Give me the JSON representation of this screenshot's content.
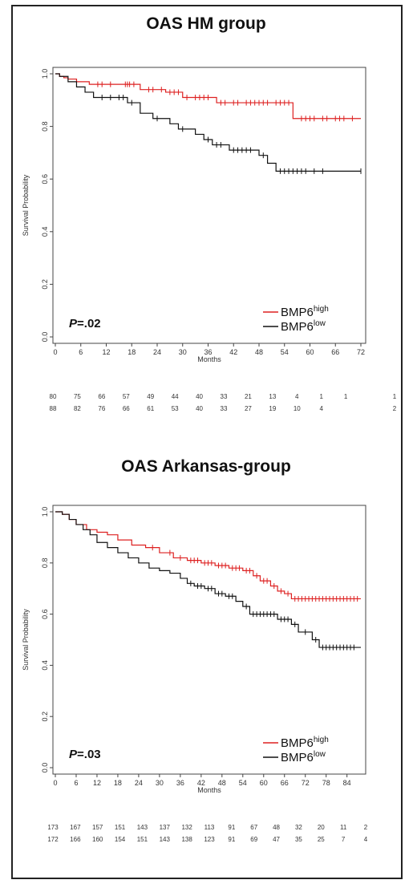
{
  "panels": [
    {
      "title": "OAS  HM group",
      "p_prefix": "P",
      "p_value": "=.02",
      "legend": [
        {
          "base": "BMP6",
          "sup": "high",
          "color": "#dd2020"
        },
        {
          "base": "BMP6",
          "sup": "low",
          "color": "#111111"
        }
      ],
      "xlabel": "Months",
      "ylabel": "Survival Probability",
      "risk_table": [
        [
          "80",
          "75",
          "66",
          "57",
          "49",
          "44",
          "40",
          "33",
          "21",
          "13",
          "4",
          "1",
          "1",
          "",
          "1"
        ],
        [
          "88",
          "82",
          "76",
          "66",
          "61",
          "53",
          "40",
          "33",
          "27",
          "19",
          "10",
          "4",
          "",
          "",
          "2"
        ]
      ]
    },
    {
      "title": "OAS Arkansas-group",
      "p_prefix": "P",
      "p_value": "=.03",
      "legend": [
        {
          "base": "BMP6",
          "sup": "high",
          "color": "#dd2020"
        },
        {
          "base": "BMP6",
          "sup": "low",
          "color": "#111111"
        }
      ],
      "xlabel": "Months",
      "ylabel": "Survival Probability",
      "risk_table": [
        [
          "173",
          "167",
          "157",
          "151",
          "143",
          "137",
          "132",
          "113",
          "91",
          "67",
          "48",
          "32",
          "20",
          "11",
          "2"
        ],
        [
          "172",
          "166",
          "160",
          "154",
          "151",
          "143",
          "138",
          "123",
          "91",
          "69",
          "47",
          "35",
          "25",
          "7",
          "4"
        ]
      ]
    }
  ],
  "chart_data": [
    {
      "type": "line",
      "step": true,
      "title": "OAS  HM group",
      "xlabel": "Months",
      "ylabel": "Survival Probability",
      "xlim": [
        0,
        72
      ],
      "ylim": [
        0,
        1
      ],
      "xticks": [
        0,
        6,
        12,
        18,
        24,
        30,
        36,
        42,
        48,
        54,
        60,
        66,
        72
      ],
      "yticks": [
        0.0,
        0.2,
        0.4,
        0.6,
        0.8,
        1.0
      ],
      "legend_position": "bottom-right",
      "series": [
        {
          "name": "BMP6high",
          "color": "#dd2020",
          "x": [
            0,
            1,
            2,
            3,
            5,
            8,
            16,
            20,
            26,
            30,
            38,
            56,
            72
          ],
          "y": [
            1.0,
            0.99,
            0.985,
            0.98,
            0.97,
            0.96,
            0.96,
            0.94,
            0.93,
            0.91,
            0.89,
            0.83,
            0.83
          ],
          "censors": [
            [
              10,
              0.96
            ],
            [
              11,
              0.96
            ],
            [
              13,
              0.96
            ],
            [
              16.5,
              0.96
            ],
            [
              17,
              0.96
            ],
            [
              17.5,
              0.96
            ],
            [
              18.5,
              0.96
            ],
            [
              22,
              0.94
            ],
            [
              23,
              0.94
            ],
            [
              25,
              0.94
            ],
            [
              27,
              0.93
            ],
            [
              28,
              0.93
            ],
            [
              29,
              0.93
            ],
            [
              31,
              0.91
            ],
            [
              33,
              0.91
            ],
            [
              34,
              0.91
            ],
            [
              35,
              0.91
            ],
            [
              36,
              0.91
            ],
            [
              39,
              0.89
            ],
            [
              40,
              0.89
            ],
            [
              42,
              0.89
            ],
            [
              43,
              0.89
            ],
            [
              45,
              0.89
            ],
            [
              46,
              0.89
            ],
            [
              47,
              0.89
            ],
            [
              48,
              0.89
            ],
            [
              49,
              0.89
            ],
            [
              50,
              0.89
            ],
            [
              52,
              0.89
            ],
            [
              53,
              0.89
            ],
            [
              54,
              0.89
            ],
            [
              55,
              0.89
            ],
            [
              58,
              0.83
            ],
            [
              59,
              0.83
            ],
            [
              60,
              0.83
            ],
            [
              61,
              0.83
            ],
            [
              63,
              0.83
            ],
            [
              64,
              0.83
            ],
            [
              66,
              0.83
            ],
            [
              67,
              0.83
            ],
            [
              68,
              0.83
            ],
            [
              70,
              0.83
            ]
          ]
        },
        {
          "name": "BMP6low",
          "color": "#111111",
          "x": [
            0,
            1,
            3,
            5,
            7,
            9,
            17,
            20,
            23,
            27,
            29,
            33,
            35,
            37,
            41,
            48,
            50,
            52,
            72
          ],
          "y": [
            1.0,
            0.99,
            0.97,
            0.95,
            0.93,
            0.91,
            0.89,
            0.85,
            0.83,
            0.81,
            0.79,
            0.77,
            0.75,
            0.73,
            0.71,
            0.69,
            0.66,
            0.63,
            0.63
          ],
          "censors": [
            [
              11,
              0.91
            ],
            [
              13,
              0.91
            ],
            [
              15,
              0.91
            ],
            [
              16,
              0.91
            ],
            [
              18,
              0.89
            ],
            [
              24,
              0.83
            ],
            [
              30,
              0.79
            ],
            [
              36,
              0.75
            ],
            [
              38,
              0.73
            ],
            [
              39,
              0.73
            ],
            [
              42,
              0.71
            ],
            [
              43,
              0.71
            ],
            [
              44,
              0.71
            ],
            [
              45,
              0.71
            ],
            [
              46,
              0.71
            ],
            [
              49,
              0.69
            ],
            [
              53,
              0.63
            ],
            [
              54,
              0.63
            ],
            [
              55,
              0.63
            ],
            [
              56,
              0.63
            ],
            [
              57,
              0.63
            ],
            [
              58,
              0.63
            ],
            [
              59,
              0.63
            ],
            [
              61,
              0.63
            ],
            [
              63,
              0.63
            ],
            [
              72,
              0.63
            ]
          ]
        }
      ],
      "p_value": "P=.02",
      "risk_table": [
        [
          80,
          75,
          66,
          57,
          49,
          44,
          40,
          33,
          21,
          13,
          4,
          1,
          1,
          null,
          1
        ],
        [
          88,
          82,
          76,
          66,
          61,
          53,
          40,
          33,
          27,
          19,
          10,
          4,
          null,
          null,
          2
        ]
      ]
    },
    {
      "type": "line",
      "step": true,
      "title": "OAS Arkansas-group",
      "xlabel": "Months",
      "ylabel": "Survival Probability",
      "xlim": [
        0,
        88
      ],
      "ylim": [
        0,
        1
      ],
      "xticks": [
        0,
        6,
        12,
        18,
        24,
        30,
        36,
        42,
        48,
        54,
        60,
        66,
        72,
        78,
        84
      ],
      "yticks": [
        0.0,
        0.2,
        0.4,
        0.6,
        0.8,
        1.0
      ],
      "legend_position": "bottom-right",
      "series": [
        {
          "name": "BMP6high",
          "color": "#dd2020",
          "x": [
            0,
            2,
            4,
            6,
            9,
            12,
            15,
            18,
            22,
            26,
            30,
            34,
            38,
            42,
            46,
            50,
            54,
            57,
            59,
            62,
            64,
            66,
            68,
            88
          ],
          "y": [
            1.0,
            0.99,
            0.97,
            0.95,
            0.93,
            0.92,
            0.91,
            0.89,
            0.87,
            0.86,
            0.84,
            0.82,
            0.81,
            0.8,
            0.79,
            0.78,
            0.77,
            0.75,
            0.73,
            0.71,
            0.69,
            0.68,
            0.66,
            0.66
          ],
          "censors": [
            [
              28,
              0.86
            ],
            [
              33,
              0.84
            ],
            [
              36,
              0.82
            ],
            [
              39,
              0.81
            ],
            [
              40,
              0.81
            ],
            [
              41,
              0.81
            ],
            [
              43,
              0.8
            ],
            [
              44,
              0.8
            ],
            [
              45,
              0.8
            ],
            [
              47,
              0.79
            ],
            [
              48,
              0.79
            ],
            [
              49,
              0.79
            ],
            [
              51,
              0.78
            ],
            [
              52,
              0.78
            ],
            [
              53,
              0.78
            ],
            [
              55,
              0.77
            ],
            [
              56,
              0.77
            ],
            [
              58,
              0.75
            ],
            [
              60,
              0.73
            ],
            [
              61,
              0.73
            ],
            [
              63,
              0.71
            ],
            [
              65,
              0.69
            ],
            [
              67,
              0.68
            ],
            [
              69,
              0.66
            ],
            [
              70,
              0.66
            ],
            [
              71,
              0.66
            ],
            [
              72,
              0.66
            ],
            [
              73,
              0.66
            ],
            [
              74,
              0.66
            ],
            [
              75,
              0.66
            ],
            [
              76,
              0.66
            ],
            [
              77,
              0.66
            ],
            [
              78,
              0.66
            ],
            [
              79,
              0.66
            ],
            [
              80,
              0.66
            ],
            [
              81,
              0.66
            ],
            [
              82,
              0.66
            ],
            [
              83,
              0.66
            ],
            [
              84,
              0.66
            ],
            [
              85,
              0.66
            ],
            [
              86,
              0.66
            ],
            [
              87,
              0.66
            ]
          ]
        },
        {
          "name": "BMP6low",
          "color": "#111111",
          "x": [
            0,
            2,
            4,
            6,
            8,
            10,
            12,
            15,
            18,
            21,
            24,
            27,
            30,
            33,
            36,
            38,
            40,
            43,
            46,
            49,
            52,
            54,
            56,
            64,
            68,
            70,
            74,
            76,
            88
          ],
          "y": [
            1.0,
            0.99,
            0.97,
            0.95,
            0.93,
            0.91,
            0.88,
            0.86,
            0.84,
            0.82,
            0.8,
            0.78,
            0.77,
            0.76,
            0.74,
            0.72,
            0.71,
            0.7,
            0.68,
            0.67,
            0.65,
            0.63,
            0.6,
            0.58,
            0.56,
            0.53,
            0.5,
            0.47,
            0.47
          ],
          "censors": [
            [
              39,
              0.72
            ],
            [
              41,
              0.71
            ],
            [
              42,
              0.71
            ],
            [
              44,
              0.7
            ],
            [
              45,
              0.7
            ],
            [
              47,
              0.68
            ],
            [
              48,
              0.68
            ],
            [
              50,
              0.67
            ],
            [
              51,
              0.67
            ],
            [
              55,
              0.63
            ],
            [
              57,
              0.6
            ],
            [
              58,
              0.6
            ],
            [
              59,
              0.6
            ],
            [
              60,
              0.6
            ],
            [
              61,
              0.6
            ],
            [
              62,
              0.6
            ],
            [
              63,
              0.6
            ],
            [
              65,
              0.58
            ],
            [
              66,
              0.58
            ],
            [
              67,
              0.58
            ],
            [
              69,
              0.56
            ],
            [
              72,
              0.53
            ],
            [
              75,
              0.5
            ],
            [
              77,
              0.47
            ],
            [
              78,
              0.47
            ],
            [
              79,
              0.47
            ],
            [
              80,
              0.47
            ],
            [
              81,
              0.47
            ],
            [
              82,
              0.47
            ],
            [
              83,
              0.47
            ],
            [
              84,
              0.47
            ],
            [
              85,
              0.47
            ],
            [
              86,
              0.47
            ]
          ]
        }
      ],
      "p_value": "P=.03",
      "risk_table": [
        [
          173,
          167,
          157,
          151,
          143,
          137,
          132,
          113,
          91,
          67,
          48,
          32,
          20,
          11,
          2
        ],
        [
          172,
          166,
          160,
          154,
          151,
          143,
          138,
          123,
          91,
          69,
          47,
          35,
          25,
          7,
          4
        ]
      ]
    }
  ]
}
